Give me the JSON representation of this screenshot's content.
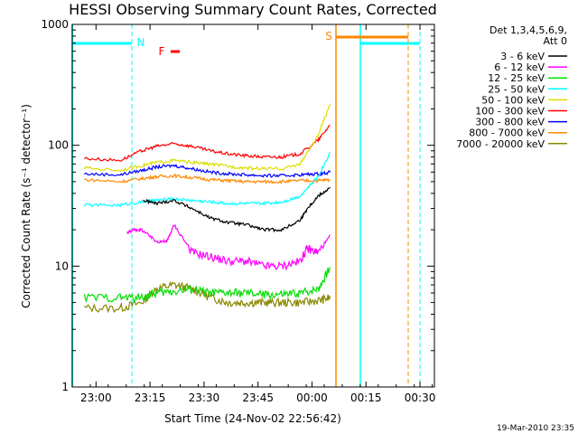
{
  "chart_data": {
    "type": "line",
    "title": "HESSI Observing Summary Count Rates, Corrected",
    "xlabel": "Start Time (24-Nov-02 22:56:42)",
    "ylabel": "Corrected Count Rate (s⁻¹ detector⁻¹)",
    "ylog": true,
    "ylim": [
      1,
      1000
    ],
    "xlim_min": [
      -3.3,
      97.3
    ],
    "x_tick_minutes": [
      3.3,
      18.3,
      33.3,
      48.3,
      63.3,
      78.3,
      93.3
    ],
    "x_ticks": [
      "23:00",
      "23:15",
      "23:30",
      "23:45",
      "00:00",
      "00:15",
      "00:30"
    ],
    "y_ticks": [
      "1",
      "10",
      "100",
      "1000"
    ],
    "y_tick_values": [
      1,
      10,
      100,
      1000
    ],
    "legend": {
      "header": [
        "Det 1,3,4,5,6,9,",
        "Att 0"
      ],
      "placement": "right"
    },
    "series": [
      {
        "name": "3 - 6 keV",
        "color": "#000000",
        "x": [
          0,
          16,
          16.5,
          20,
          25,
          30,
          35,
          40,
          45,
          50,
          55,
          60,
          62,
          65,
          68.5
        ],
        "y": [
          null,
          null,
          35,
          33,
          35,
          30,
          25,
          23,
          22,
          20,
          20,
          24,
          30,
          38,
          45
        ]
      },
      {
        "name": "6 - 12 keV",
        "color": "#ff00ff",
        "x": [
          12,
          14,
          16,
          20,
          23,
          25,
          30,
          35,
          40,
          45,
          50,
          55,
          60,
          62,
          65,
          68.5
        ],
        "y": [
          19,
          20,
          20,
          16,
          16,
          22,
          13,
          12,
          11,
          11,
          10,
          10,
          11,
          14,
          13,
          18
        ]
      },
      {
        "name": "12 - 25 keV",
        "color": "#00e000",
        "x": [
          0,
          10,
          16,
          20,
          25,
          30,
          35,
          40,
          45,
          50,
          55,
          60,
          65,
          68.5
        ],
        "y": [
          5.5,
          5.5,
          5.5,
          6,
          6.2,
          6.5,
          6,
          6,
          6,
          5.8,
          5.8,
          6,
          6.5,
          10
        ]
      },
      {
        "name": "25 - 50 keV",
        "color": "#00ffff",
        "x": [
          0,
          10,
          16,
          20,
          25,
          30,
          35,
          40,
          45,
          50,
          55,
          60,
          65,
          68.5
        ],
        "y": [
          32,
          32,
          34,
          35,
          36,
          35,
          34,
          33,
          33,
          33,
          34,
          38,
          55,
          90
        ]
      },
      {
        "name": "50 - 100 keV",
        "color": "#dddd00",
        "x": [
          0,
          10,
          16,
          20,
          25,
          30,
          35,
          40,
          45,
          50,
          55,
          60,
          65,
          68.5
        ],
        "y": [
          65,
          62,
          68,
          72,
          75,
          72,
          70,
          67,
          65,
          64,
          64,
          70,
          120,
          230
        ]
      },
      {
        "name": "100 - 300 keV",
        "color": "#ff0000",
        "x": [
          0,
          10,
          16,
          20,
          25,
          30,
          35,
          40,
          45,
          50,
          55,
          60,
          65,
          68.5
        ],
        "y": [
          78,
          75,
          90,
          98,
          103,
          98,
          90,
          85,
          82,
          80,
          80,
          85,
          110,
          150
        ]
      },
      {
        "name": "300 - 800 keV",
        "color": "#0000ff",
        "x": [
          0,
          10,
          16,
          20,
          25,
          30,
          35,
          40,
          45,
          50,
          55,
          60,
          65,
          68.5
        ],
        "y": [
          58,
          57,
          62,
          66,
          68,
          64,
          60,
          58,
          57,
          56,
          56,
          57,
          58,
          60
        ]
      },
      {
        "name": "800 - 7000 keV",
        "color": "#ff8800",
        "x": [
          0,
          10,
          16,
          20,
          25,
          30,
          35,
          40,
          45,
          50,
          55,
          60,
          65,
          68.5
        ],
        "y": [
          52,
          50,
          53,
          55,
          56,
          54,
          52,
          51,
          50,
          50,
          50,
          51,
          51,
          52
        ]
      },
      {
        "name": "7000 - 20000 keV",
        "color": "#888800",
        "x": [
          0,
          10,
          16,
          20,
          25,
          30,
          35,
          40,
          45,
          50,
          55,
          60,
          65,
          68.5
        ],
        "y": [
          4.5,
          4.5,
          5,
          6.5,
          7,
          6.5,
          5.5,
          5,
          5,
          5,
          5,
          5,
          5.2,
          5.5
        ]
      }
    ],
    "annotations": [
      {
        "text": "N",
        "color": "#00ffff"
      },
      {
        "text": "F",
        "color": "#ff0000"
      },
      {
        "text": "S",
        "color": "#ff8800"
      }
    ],
    "timestamp": "19-Mar-2010 23:35"
  }
}
